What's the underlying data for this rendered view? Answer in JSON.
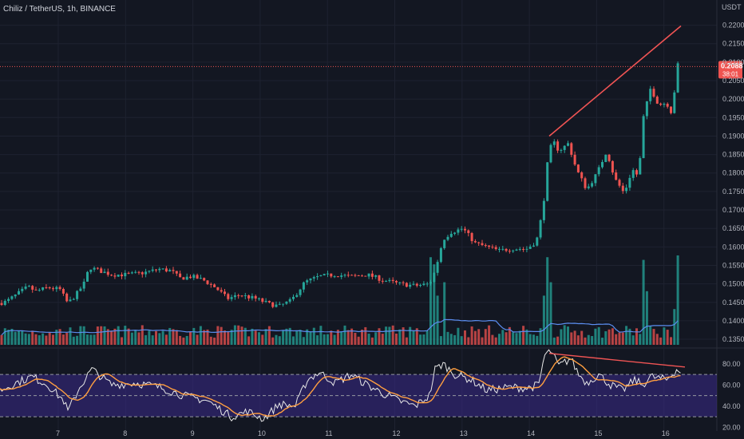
{
  "chart_data": {
    "type": "candlestick",
    "title": "Chiliz / TetherUS, 1h, BINANCE",
    "currency": "USDT",
    "price_axis": {
      "ticks": [
        "0.2200",
        "0.2150",
        "0.2100",
        "0.2050",
        "0.2000",
        "0.1950",
        "0.1900",
        "0.1850",
        "0.1800",
        "0.1750",
        "0.1700",
        "0.1650",
        "0.1600",
        "0.1550",
        "0.1500",
        "0.1450",
        "0.1400",
        "0.1350"
      ],
      "range": [
        0.1335,
        0.2225
      ]
    },
    "last_price": {
      "value": "0.2088",
      "sub": "38:01",
      "color": "#ef5350"
    },
    "x_axis": {
      "labels": [
        "7",
        "8",
        "9",
        "10",
        "11",
        "12",
        "13",
        "14",
        "15",
        "16"
      ]
    },
    "colors": {
      "up": "#26a69a",
      "down": "#ef5350",
      "vol_ma": "#5b8def",
      "trend": "#f05454",
      "rsi": "#e8e8e8",
      "rsi_ma": "#ff9f40",
      "band": "#3b2a8a"
    },
    "price_path": [
      [
        0,
        0.1448
      ],
      [
        8,
        0.1452
      ],
      [
        20,
        0.147
      ],
      [
        35,
        0.1492
      ],
      [
        45,
        0.148
      ],
      [
        60,
        0.149
      ],
      [
        75,
        0.1485
      ],
      [
        85,
        0.1447
      ],
      [
        95,
        0.147
      ],
      [
        105,
        0.15
      ],
      [
        112,
        0.1545
      ],
      [
        125,
        0.1535
      ],
      [
        140,
        0.1525
      ],
      [
        160,
        0.1525
      ],
      [
        180,
        0.153
      ],
      [
        200,
        0.154
      ],
      [
        215,
        0.1535
      ],
      [
        225,
        0.1515
      ],
      [
        240,
        0.152
      ],
      [
        255,
        0.151
      ],
      [
        270,
        0.149
      ],
      [
        285,
        0.146
      ],
      [
        300,
        0.147
      ],
      [
        320,
        0.146
      ],
      [
        338,
        0.1445
      ],
      [
        350,
        0.144
      ],
      [
        365,
        0.1455
      ],
      [
        382,
        0.1505
      ],
      [
        400,
        0.152
      ],
      [
        420,
        0.1525
      ],
      [
        440,
        0.152
      ],
      [
        460,
        0.1525
      ],
      [
        480,
        0.151
      ],
      [
        500,
        0.15
      ],
      [
        520,
        0.1495
      ],
      [
        538,
        0.15
      ],
      [
        545,
        0.1535
      ],
      [
        555,
        0.162
      ],
      [
        565,
        0.164
      ],
      [
        580,
        0.165
      ],
      [
        595,
        0.161
      ],
      [
        610,
        0.16
      ],
      [
        625,
        0.159
      ],
      [
        640,
        0.1595
      ],
      [
        660,
        0.1595
      ],
      [
        672,
        0.1615
      ],
      [
        680,
        0.17
      ],
      [
        686,
        0.183
      ],
      [
        692,
        0.189
      ],
      [
        700,
        0.186
      ],
      [
        712,
        0.188
      ],
      [
        722,
        0.181
      ],
      [
        735,
        0.1755
      ],
      [
        748,
        0.18
      ],
      [
        760,
        0.186
      ],
      [
        770,
        0.1785
      ],
      [
        782,
        0.1745
      ],
      [
        792,
        0.181
      ],
      [
        800,
        0.179
      ],
      [
        806,
        0.195
      ],
      [
        815,
        0.203
      ],
      [
        825,
        0.1985
      ],
      [
        835,
        0.199
      ],
      [
        842,
        0.196
      ],
      [
        848,
        0.209
      ],
      [
        853,
        0.21
      ]
    ],
    "volume_spikes": [
      [
        540,
        0.98
      ],
      [
        545,
        0.9
      ],
      [
        548,
        0.55
      ],
      [
        555,
        0.7
      ],
      [
        680,
        0.55
      ],
      [
        686,
        0.98
      ],
      [
        690,
        0.7
      ],
      [
        804,
        0.95
      ],
      [
        812,
        0.6
      ],
      [
        845,
        0.4
      ],
      [
        850,
        1.0
      ],
      [
        853,
        0.35
      ]
    ],
    "trendline_price": [
      [
        688,
        0.19
      ],
      [
        853,
        0.2198
      ]
    ],
    "rsi_axis": {
      "ticks": [
        "80.00",
        "60.00",
        "40.00",
        "20.00"
      ],
      "range": [
        18,
        92
      ],
      "upper": 70,
      "mid": 50,
      "lower": 30
    },
    "rsi_path": [
      [
        0,
        55
      ],
      [
        20,
        62
      ],
      [
        40,
        68
      ],
      [
        60,
        60
      ],
      [
        80,
        45
      ],
      [
        85,
        35
      ],
      [
        100,
        58
      ],
      [
        115,
        75
      ],
      [
        140,
        60
      ],
      [
        170,
        62
      ],
      [
        200,
        58
      ],
      [
        230,
        50
      ],
      [
        260,
        45
      ],
      [
        290,
        30
      ],
      [
        310,
        35
      ],
      [
        330,
        28
      ],
      [
        350,
        42
      ],
      [
        370,
        40
      ],
      [
        385,
        65
      ],
      [
        400,
        72
      ],
      [
        420,
        62
      ],
      [
        440,
        70
      ],
      [
        460,
        60
      ],
      [
        480,
        52
      ],
      [
        500,
        45
      ],
      [
        520,
        40
      ],
      [
        538,
        50
      ],
      [
        545,
        75
      ],
      [
        555,
        80
      ],
      [
        570,
        70
      ],
      [
        590,
        65
      ],
      [
        610,
        55
      ],
      [
        640,
        58
      ],
      [
        660,
        57
      ],
      [
        675,
        60
      ],
      [
        682,
        88
      ],
      [
        690,
        92
      ],
      [
        700,
        78
      ],
      [
        715,
        85
      ],
      [
        725,
        70
      ],
      [
        735,
        62
      ],
      [
        750,
        70
      ],
      [
        765,
        60
      ],
      [
        780,
        55
      ],
      [
        795,
        65
      ],
      [
        805,
        60
      ],
      [
        815,
        68
      ],
      [
        835,
        65
      ],
      [
        848,
        75
      ],
      [
        853,
        72
      ]
    ],
    "rsi_trendline": [
      [
        688,
        90
      ],
      [
        858,
        77
      ]
    ]
  }
}
